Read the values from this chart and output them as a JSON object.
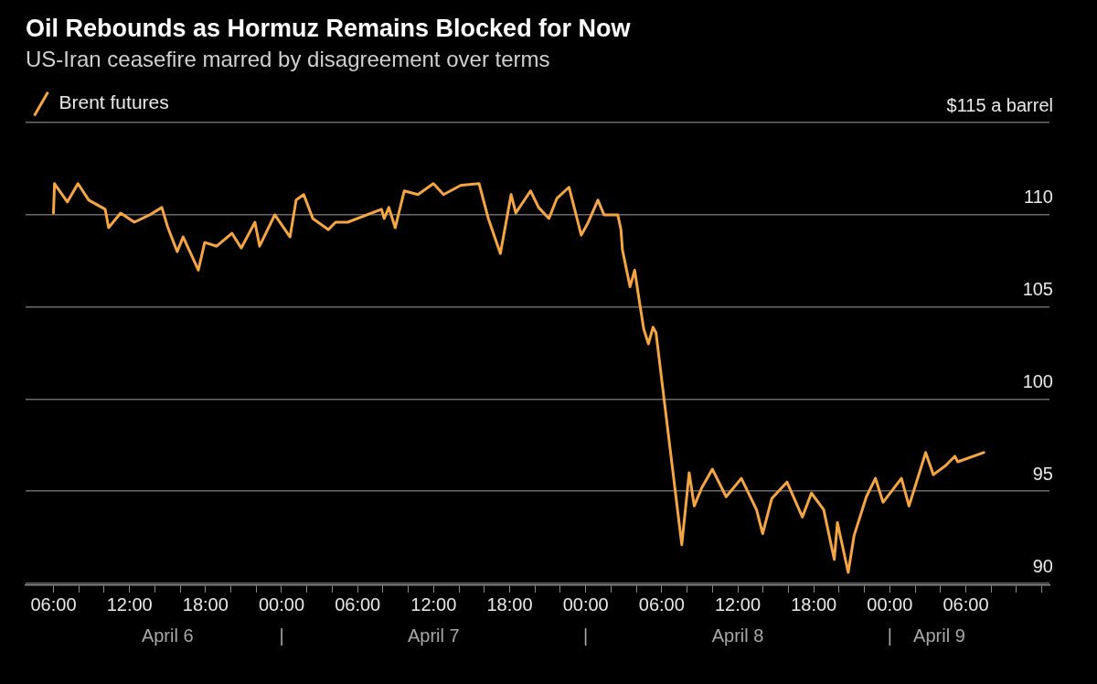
{
  "chart_data": {
    "type": "line",
    "title": "Oil Rebounds as Hormuz Remains Blocked for Now",
    "subtitle": "US-Iran ceasefire marred by disagreement over terms",
    "series": [
      {
        "name": "Brent futures",
        "color": "#f5a542",
        "x": [
          "--04-06T06:00",
          "--04-06T06:05",
          "--04-06T06:10",
          "--04-06T07:06",
          "--04-06T07:56",
          "--04-06T08:47",
          "--04-06T10:05",
          "--04-06T10:21",
          "--04-06T11:18",
          "--04-06T12:23",
          "--04-06T13:36",
          "--04-06T14:33",
          "--04-06T15:02",
          "--04-06T15:46",
          "--04-06T16:14",
          "--04-06T17:26",
          "--04-06T17:56",
          "--04-06T18:53",
          "--04-06T20:05",
          "--04-06T20:49",
          "--04-06T21:54",
          "--04-06T22:16",
          "--04-06T23:28",
          "--04-07T00:40",
          "--04-07T01:09",
          "--04-07T01:45",
          "--04-07T02:28",
          "--04-07T03:41",
          "--04-07T04:16",
          "--04-07T05:13",
          "--04-07T07:53",
          "--04-07T08:06",
          "--04-07T08:28",
          "--04-07T08:58",
          "--04-07T09:41",
          "--04-07T10:46",
          "--04-07T11:59",
          "--04-07T12:47",
          "--04-07T14:08",
          "--04-07T15:35",
          "--04-07T16:19",
          "--04-07T17:16",
          "--04-07T18:07",
          "--04-07T18:29",
          "--04-07T19:39",
          "--04-07T20:17",
          "--04-07T21:06",
          "--04-07T21:44",
          "--04-07T22:41",
          "--04-07T23:39",
          "--04-08T00:08",
          "--04-08T00:58",
          "--04-08T01:27",
          "--04-08T02:32",
          "--04-08T02:47",
          "--04-08T02:54",
          "--04-08T03:30",
          "--04-08T03:52",
          "--04-08T04:13",
          "--04-08T04:35",
          "--04-08T04:57",
          "--04-08T05:19",
          "--04-08T05:33",
          "--04-08T07:35",
          "--04-08T08:10",
          "--04-08T08:34",
          "--04-08T09:10",
          "--04-08T10:00",
          "--04-08T11:05",
          "--04-08T12:17",
          "--04-08T13:29",
          "--04-08T13:58",
          "--04-08T14:41",
          "--04-08T15:53",
          "--04-08T17:06",
          "--04-08T17:49",
          "--04-08T18:47",
          "--04-08T19:37",
          "--04-08T19:52",
          "--04-08T20:43",
          "--04-08T21:11",
          "--04-08T22:09",
          "--04-08T22:52",
          "--04-08T23:28",
          "--04-09T00:55",
          "--04-09T01:31",
          "--04-09T02:50",
          "--04-09T03:26",
          "--04-09T04:25",
          "--04-09T05:08",
          "--04-09T05:22",
          "--04-09T07:25"
        ],
        "values": [
          110.1,
          111.7,
          111.6,
          110.7,
          111.7,
          110.8,
          110.3,
          109.3,
          110.1,
          109.6,
          110.0,
          110.4,
          109.3,
          108.0,
          108.8,
          107.0,
          108.5,
          108.3,
          109.0,
          108.2,
          109.6,
          108.3,
          110.0,
          108.8,
          110.8,
          111.1,
          109.8,
          109.2,
          109.6,
          109.6,
          110.3,
          109.8,
          110.4,
          109.3,
          111.3,
          111.1,
          111.7,
          111.1,
          111.6,
          111.7,
          109.8,
          107.9,
          111.1,
          110.1,
          111.3,
          110.4,
          109.8,
          110.9,
          111.5,
          108.9,
          109.5,
          110.8,
          110.0,
          110.0,
          109.2,
          108.1,
          106.1,
          107.0,
          105.4,
          103.8,
          103.0,
          103.9,
          103.6,
          92.1,
          96.0,
          94.2,
          95.2,
          96.2,
          94.7,
          95.7,
          94.0,
          92.7,
          94.6,
          95.5,
          93.6,
          94.9,
          94.0,
          91.3,
          93.3,
          90.6,
          92.6,
          94.7,
          95.7,
          94.4,
          95.7,
          94.2,
          97.1,
          95.9,
          96.4,
          96.9,
          96.6,
          97.1
        ]
      }
    ],
    "xlim": [
      "--04-06T03:48",
      "--04-09T12:36"
    ],
    "xticks": [
      {
        "value": "--04-06T06:00",
        "label": "06:00"
      },
      {
        "value": "--04-06T08:00",
        "label": null
      },
      {
        "value": "--04-06T10:00",
        "label": null
      },
      {
        "value": "--04-06T12:00",
        "label": "12:00"
      },
      {
        "value": "--04-06T14:00",
        "label": null
      },
      {
        "value": "--04-06T16:00",
        "label": null
      },
      {
        "value": "--04-06T18:00",
        "label": "18:00"
      },
      {
        "value": "--04-06T20:00",
        "label": null
      },
      {
        "value": "--04-06T22:00",
        "label": null
      },
      {
        "value": "--04-07T00:00",
        "label": "00:00"
      },
      {
        "value": "--04-07T02:00",
        "label": null
      },
      {
        "value": "--04-07T04:00",
        "label": null
      },
      {
        "value": "--04-07T06:00",
        "label": "06:00"
      },
      {
        "value": "--04-07T08:00",
        "label": null
      },
      {
        "value": "--04-07T10:00",
        "label": null
      },
      {
        "value": "--04-07T12:00",
        "label": "12:00"
      },
      {
        "value": "--04-07T14:00",
        "label": null
      },
      {
        "value": "--04-07T16:00",
        "label": null
      },
      {
        "value": "--04-07T18:00",
        "label": "18:00"
      },
      {
        "value": "--04-07T20:00",
        "label": null
      },
      {
        "value": "--04-07T22:00",
        "label": null
      },
      {
        "value": "--04-08T00:00",
        "label": "00:00"
      },
      {
        "value": "--04-08T02:00",
        "label": null
      },
      {
        "value": "--04-08T04:00",
        "label": null
      },
      {
        "value": "--04-08T06:00",
        "label": "06:00"
      },
      {
        "value": "--04-08T08:00",
        "label": null
      },
      {
        "value": "--04-08T10:00",
        "label": null
      },
      {
        "value": "--04-08T12:00",
        "label": "12:00"
      },
      {
        "value": "--04-08T14:00",
        "label": null
      },
      {
        "value": "--04-08T16:00",
        "label": null
      },
      {
        "value": "--04-08T18:00",
        "label": "18:00"
      },
      {
        "value": "--04-08T20:00",
        "label": null
      },
      {
        "value": "--04-08T22:00",
        "label": null
      },
      {
        "value": "--04-09T00:00",
        "label": "00:00"
      },
      {
        "value": "--04-09T02:00",
        "label": null
      },
      {
        "value": "--04-09T04:00",
        "label": null
      },
      {
        "value": "--04-09T06:00",
        "label": "06:00"
      },
      {
        "value": "--04-09T08:00",
        "label": null
      },
      {
        "value": "--04-09T10:00",
        "label": null
      },
      {
        "value": "--04-09T12:00",
        "label": null
      }
    ],
    "x2lim": [
      "--04-06T03:48",
      "--04-09T12:36"
    ],
    "x2ticks": [
      {
        "value": "--04-06T15:00",
        "label": "April 6"
      },
      {
        "value": "--04-07T00:00",
        "label": "|"
      },
      {
        "value": "--04-07T12:00",
        "label": "April 7"
      },
      {
        "value": "--04-08T00:00",
        "label": "|"
      },
      {
        "value": "--04-08T12:00",
        "label": "April 8"
      },
      {
        "value": "--04-09T00:00",
        "label": "|"
      },
      {
        "value": "--04-09T03:54",
        "label": "April 9"
      }
    ],
    "ylim": [
      89.9,
      115
    ],
    "yticks": [
      90,
      95,
      100,
      105,
      110,
      {
        "value": 115,
        "label": "$115 a barrel"
      }
    ],
    "grid": "y",
    "legend": "top left",
    "marker": "none",
    "line_style": "solid"
  }
}
